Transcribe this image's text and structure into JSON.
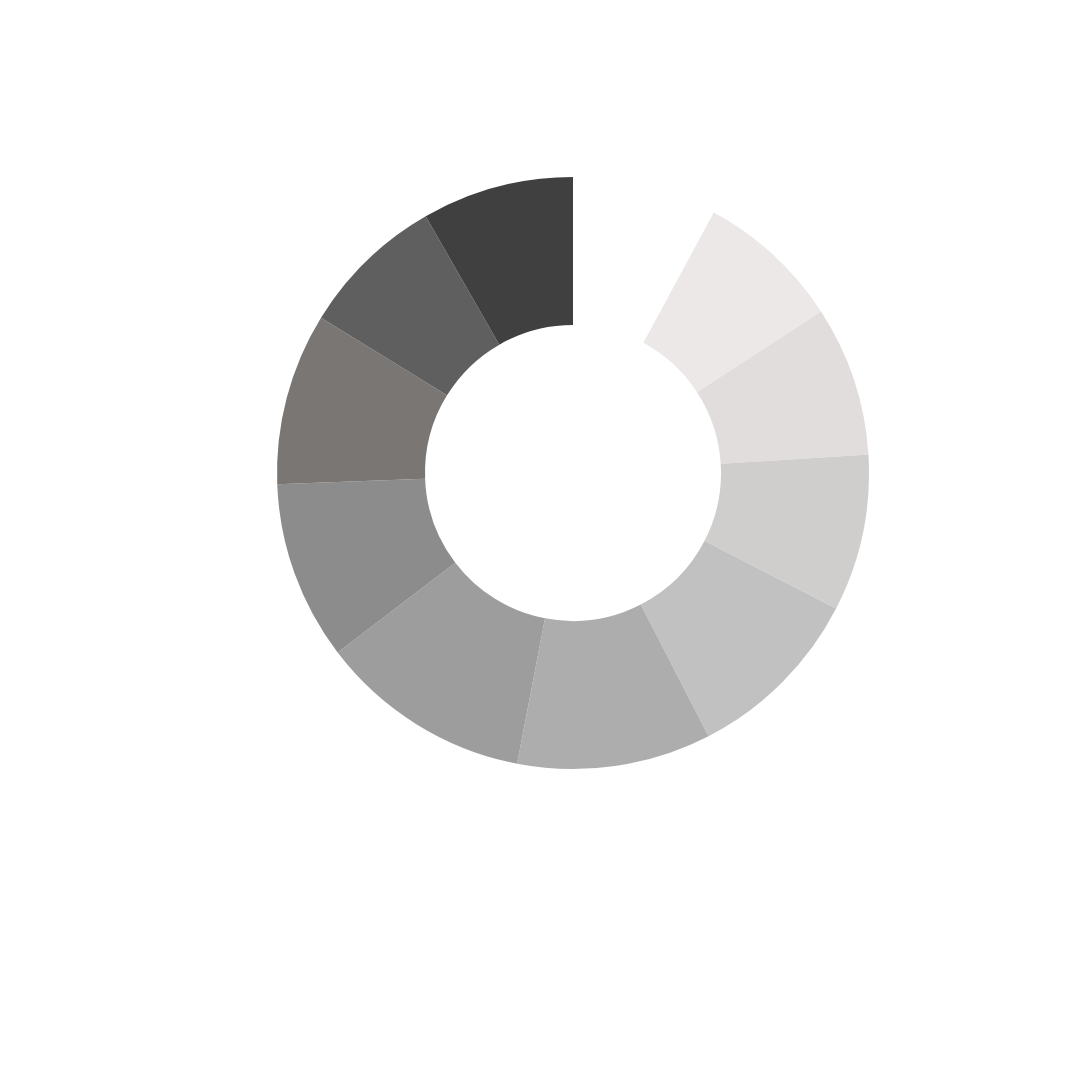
{
  "chart_data": {
    "type": "donut",
    "categories": [
      null,
      null,
      null,
      null,
      null,
      null,
      null,
      null,
      null,
      null
    ],
    "values": [
      8.6,
      8.9,
      9.3,
      10.7,
      11.5,
      12.6,
      10.6,
      10.2,
      8.6,
      9.0
    ],
    "colors": [
      "#ebe8e7",
      "#e0dddc",
      "#cfcecc",
      "#c2c1c2",
      "#aeadae",
      "#9e9d9e",
      "#8c8c8c",
      "#7a7674",
      "#5f5f5f",
      "#404040"
    ]
  }
}
